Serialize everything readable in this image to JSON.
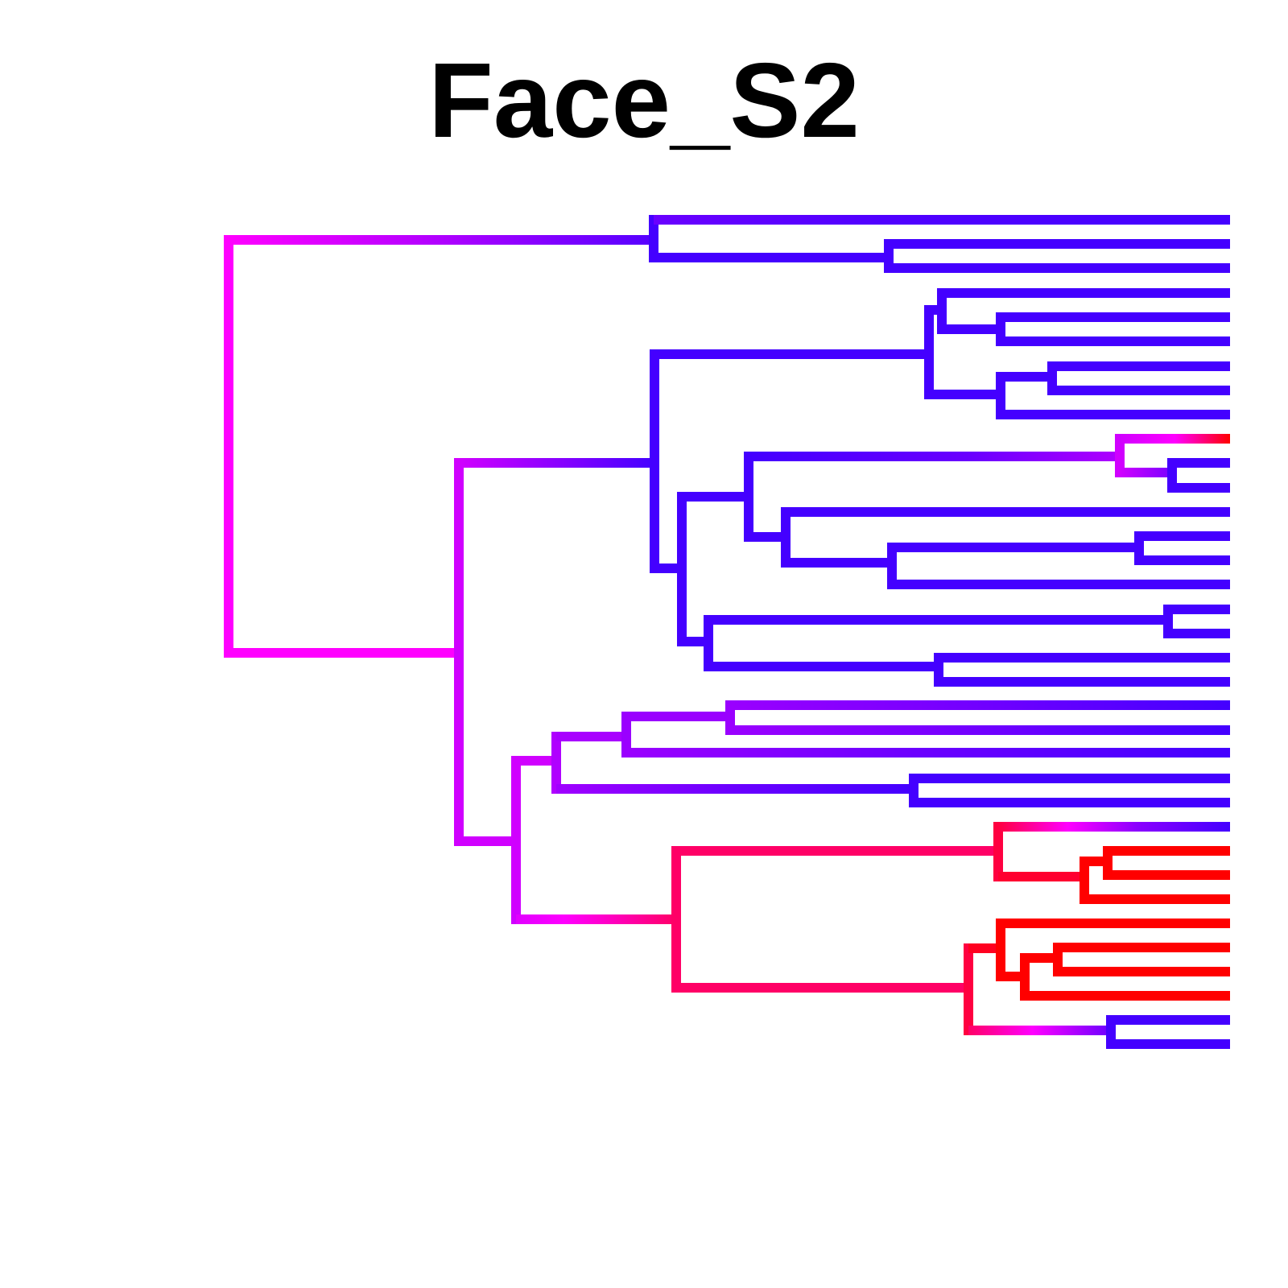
{
  "title": "Face_S2",
  "colors": {
    "blue": "#4400ff",
    "magenta": "#ff00ff",
    "red": "#ff0000"
  }
}
